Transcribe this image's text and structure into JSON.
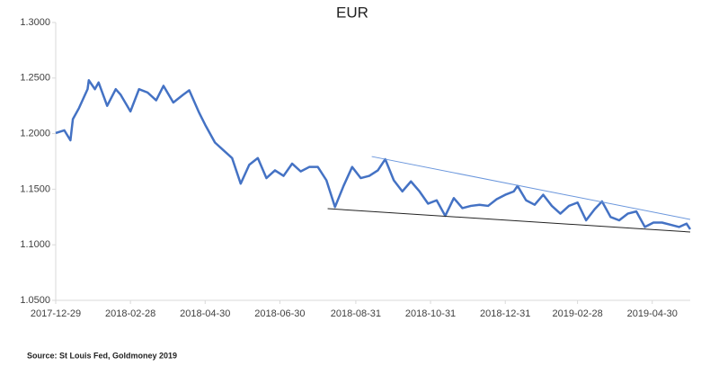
{
  "chart_data": {
    "type": "line",
    "title": "EUR",
    "source": "Source: St Louis Fed, Goldmoney 2019",
    "xlim": [
      "2017-12-29",
      "2019-05-31"
    ],
    "xticks": [
      "2017-12-29",
      "2018-02-28",
      "2018-04-30",
      "2018-06-30",
      "2018-08-31",
      "2018-10-31",
      "2018-12-31",
      "2019-02-28",
      "2019-04-30"
    ],
    "ylim": [
      1.05,
      1.3
    ],
    "yticks": [
      {
        "value": 1.05,
        "label": "1.0500"
      },
      {
        "value": 1.1,
        "label": "1.1000"
      },
      {
        "value": 1.15,
        "label": "1.1500"
      },
      {
        "value": 1.2,
        "label": "1.2000"
      },
      {
        "value": 1.25,
        "label": "1.2500"
      },
      {
        "value": 1.3,
        "label": "1.3000"
      }
    ],
    "grid": false,
    "series": [
      {
        "color": "#4472c4",
        "x": [
          "2017-12-29",
          "2018-01-05",
          "2018-01-10",
          "2018-01-12",
          "2018-01-17",
          "2018-01-24",
          "2018-01-25",
          "2018-01-30",
          "2018-02-02",
          "2018-02-09",
          "2018-02-16",
          "2018-02-20",
          "2018-02-28",
          "2018-03-07",
          "2018-03-14",
          "2018-03-21",
          "2018-03-27",
          "2018-04-04",
          "2018-04-12",
          "2018-04-17",
          "2018-04-25",
          "2018-04-30",
          "2018-05-08",
          "2018-05-15",
          "2018-05-22",
          "2018-05-29",
          "2018-06-05",
          "2018-06-12",
          "2018-06-19",
          "2018-06-26",
          "2018-07-03",
          "2018-07-10",
          "2018-07-17",
          "2018-07-24",
          "2018-07-31",
          "2018-08-07",
          "2018-08-14",
          "2018-08-21",
          "2018-08-28",
          "2018-09-04",
          "2018-09-11",
          "2018-09-18",
          "2018-09-24",
          "2018-10-01",
          "2018-10-08",
          "2018-10-15",
          "2018-10-22",
          "2018-10-29",
          "2018-11-05",
          "2018-11-12",
          "2018-11-19",
          "2018-11-26",
          "2018-12-03",
          "2018-12-10",
          "2018-12-17",
          "2018-12-24",
          "2018-12-31",
          "2019-01-07",
          "2019-01-10",
          "2019-01-17",
          "2019-01-24",
          "2019-01-31",
          "2019-02-07",
          "2019-02-14",
          "2019-02-21",
          "2019-02-28",
          "2019-03-07",
          "2019-03-14",
          "2019-03-20",
          "2019-03-27",
          "2019-04-03",
          "2019-04-10",
          "2019-04-17",
          "2019-04-24",
          "2019-05-01",
          "2019-05-08",
          "2019-05-15",
          "2019-05-22",
          "2019-05-28",
          "2019-05-31"
        ],
        "values": [
          1.2005,
          1.203,
          1.194,
          1.213,
          1.223,
          1.24,
          1.248,
          1.24,
          1.246,
          1.225,
          1.24,
          1.235,
          1.22,
          1.24,
          1.237,
          1.23,
          1.243,
          1.228,
          1.235,
          1.239,
          1.219,
          1.208,
          1.192,
          1.185,
          1.178,
          1.155,
          1.172,
          1.178,
          1.16,
          1.167,
          1.162,
          1.173,
          1.166,
          1.17,
          1.17,
          1.158,
          1.134,
          1.153,
          1.17,
          1.16,
          1.162,
          1.167,
          1.177,
          1.158,
          1.148,
          1.157,
          1.148,
          1.137,
          1.14,
          1.126,
          1.142,
          1.133,
          1.135,
          1.136,
          1.135,
          1.141,
          1.145,
          1.148,
          1.153,
          1.14,
          1.136,
          1.145,
          1.135,
          1.128,
          1.135,
          1.138,
          1.122,
          1.132,
          1.139,
          1.125,
          1.122,
          1.128,
          1.13,
          1.116,
          1.12,
          1.12,
          1.118,
          1.116,
          1.119,
          1.114
        ]
      }
    ],
    "trendlines": [
      {
        "color": "#6a96dc",
        "x": [
          "2018-09-13",
          "2019-05-31"
        ],
        "values": [
          1.1794,
          1.1228
        ]
      },
      {
        "color": "#222222",
        "x": [
          "2018-08-08",
          "2019-05-31"
        ],
        "values": [
          1.1325,
          1.1115
        ]
      }
    ]
  }
}
